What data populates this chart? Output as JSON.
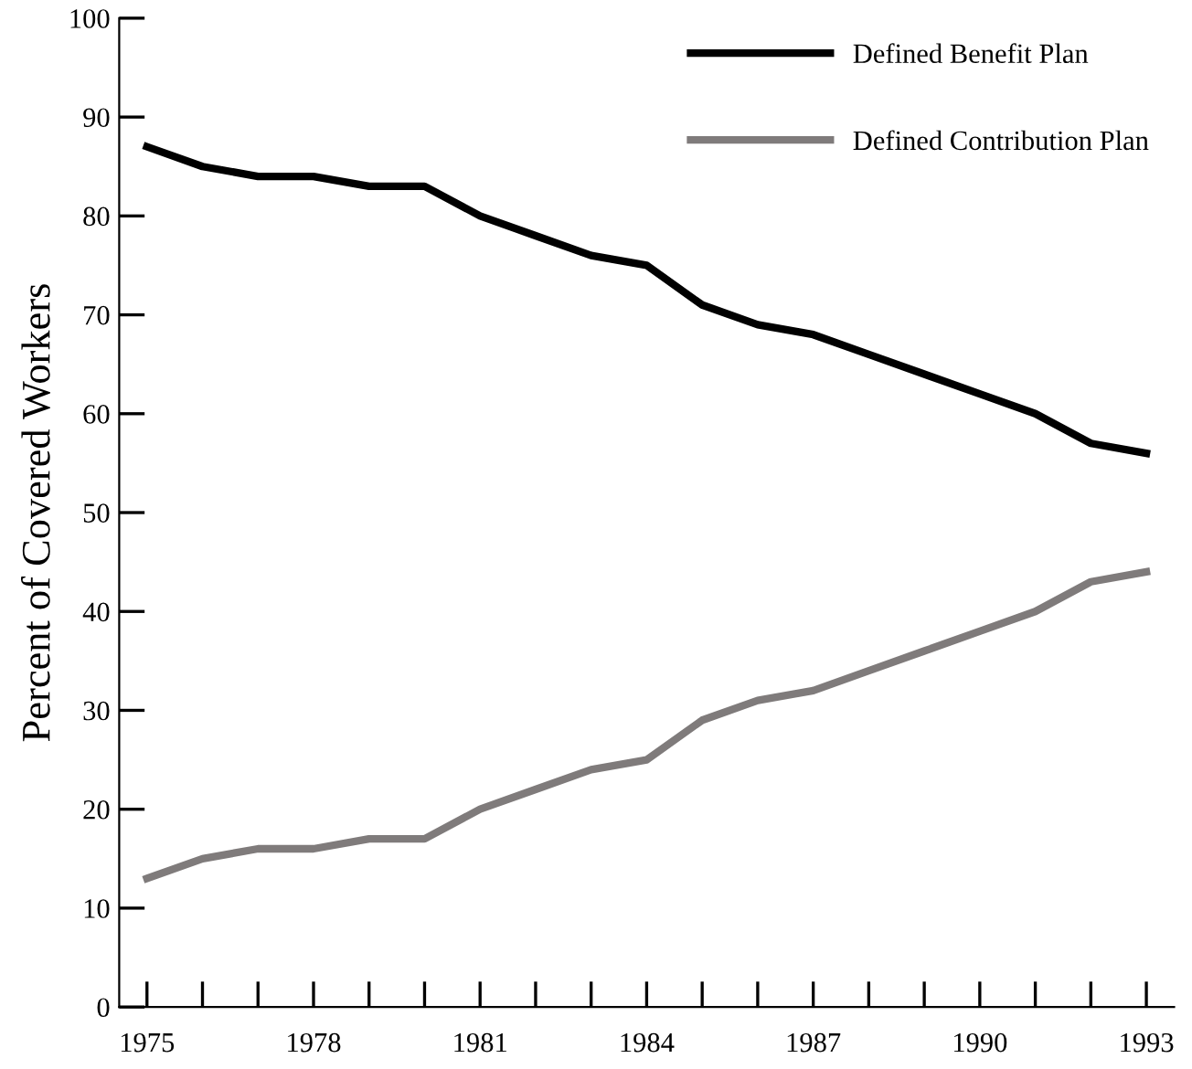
{
  "chart_data": {
    "type": "line",
    "ylabel": "Percent of Covered Workers",
    "x": [
      1975,
      1976,
      1977,
      1978,
      1979,
      1980,
      1981,
      1982,
      1983,
      1984,
      1985,
      1986,
      1987,
      1988,
      1989,
      1990,
      1991,
      1992,
      1993
    ],
    "series": [
      {
        "name": "Defined Benefit Plan",
        "color": "#000000",
        "values": [
          87,
          85,
          84,
          84,
          83,
          83,
          80,
          78,
          76,
          75,
          71,
          69,
          68,
          66,
          64,
          62,
          60,
          57,
          56
        ]
      },
      {
        "name": "Defined Contribution Plan",
        "color": "#7f7b7b",
        "values": [
          13,
          15,
          16,
          16,
          17,
          17,
          20,
          22,
          24,
          25,
          29,
          31,
          32,
          34,
          36,
          38,
          40,
          43,
          44
        ]
      }
    ],
    "xlim": [
      1974.5,
      1993.5
    ],
    "ylim": [
      0,
      100
    ],
    "xticks": [
      1975,
      {
        "value": 1976,
        "label": null
      },
      {
        "value": 1977,
        "label": null
      },
      1978,
      {
        "value": 1979,
        "label": null
      },
      {
        "value": 1980,
        "label": null
      },
      1981,
      {
        "value": 1982,
        "label": null
      },
      {
        "value": 1983,
        "label": null
      },
      1984,
      {
        "value": 1985,
        "label": null
      },
      {
        "value": 1986,
        "label": null
      },
      1987,
      {
        "value": 1988,
        "label": null
      },
      {
        "value": 1989,
        "label": null
      },
      1990,
      {
        "value": 1991,
        "label": null
      },
      {
        "value": 1992,
        "label": null
      },
      1993
    ],
    "yticks": [
      0,
      10,
      20,
      30,
      40,
      50,
      60,
      70,
      80,
      90,
      100
    ],
    "grid": false,
    "legend": "top right",
    "marker": "none",
    "line_style": "solid"
  }
}
